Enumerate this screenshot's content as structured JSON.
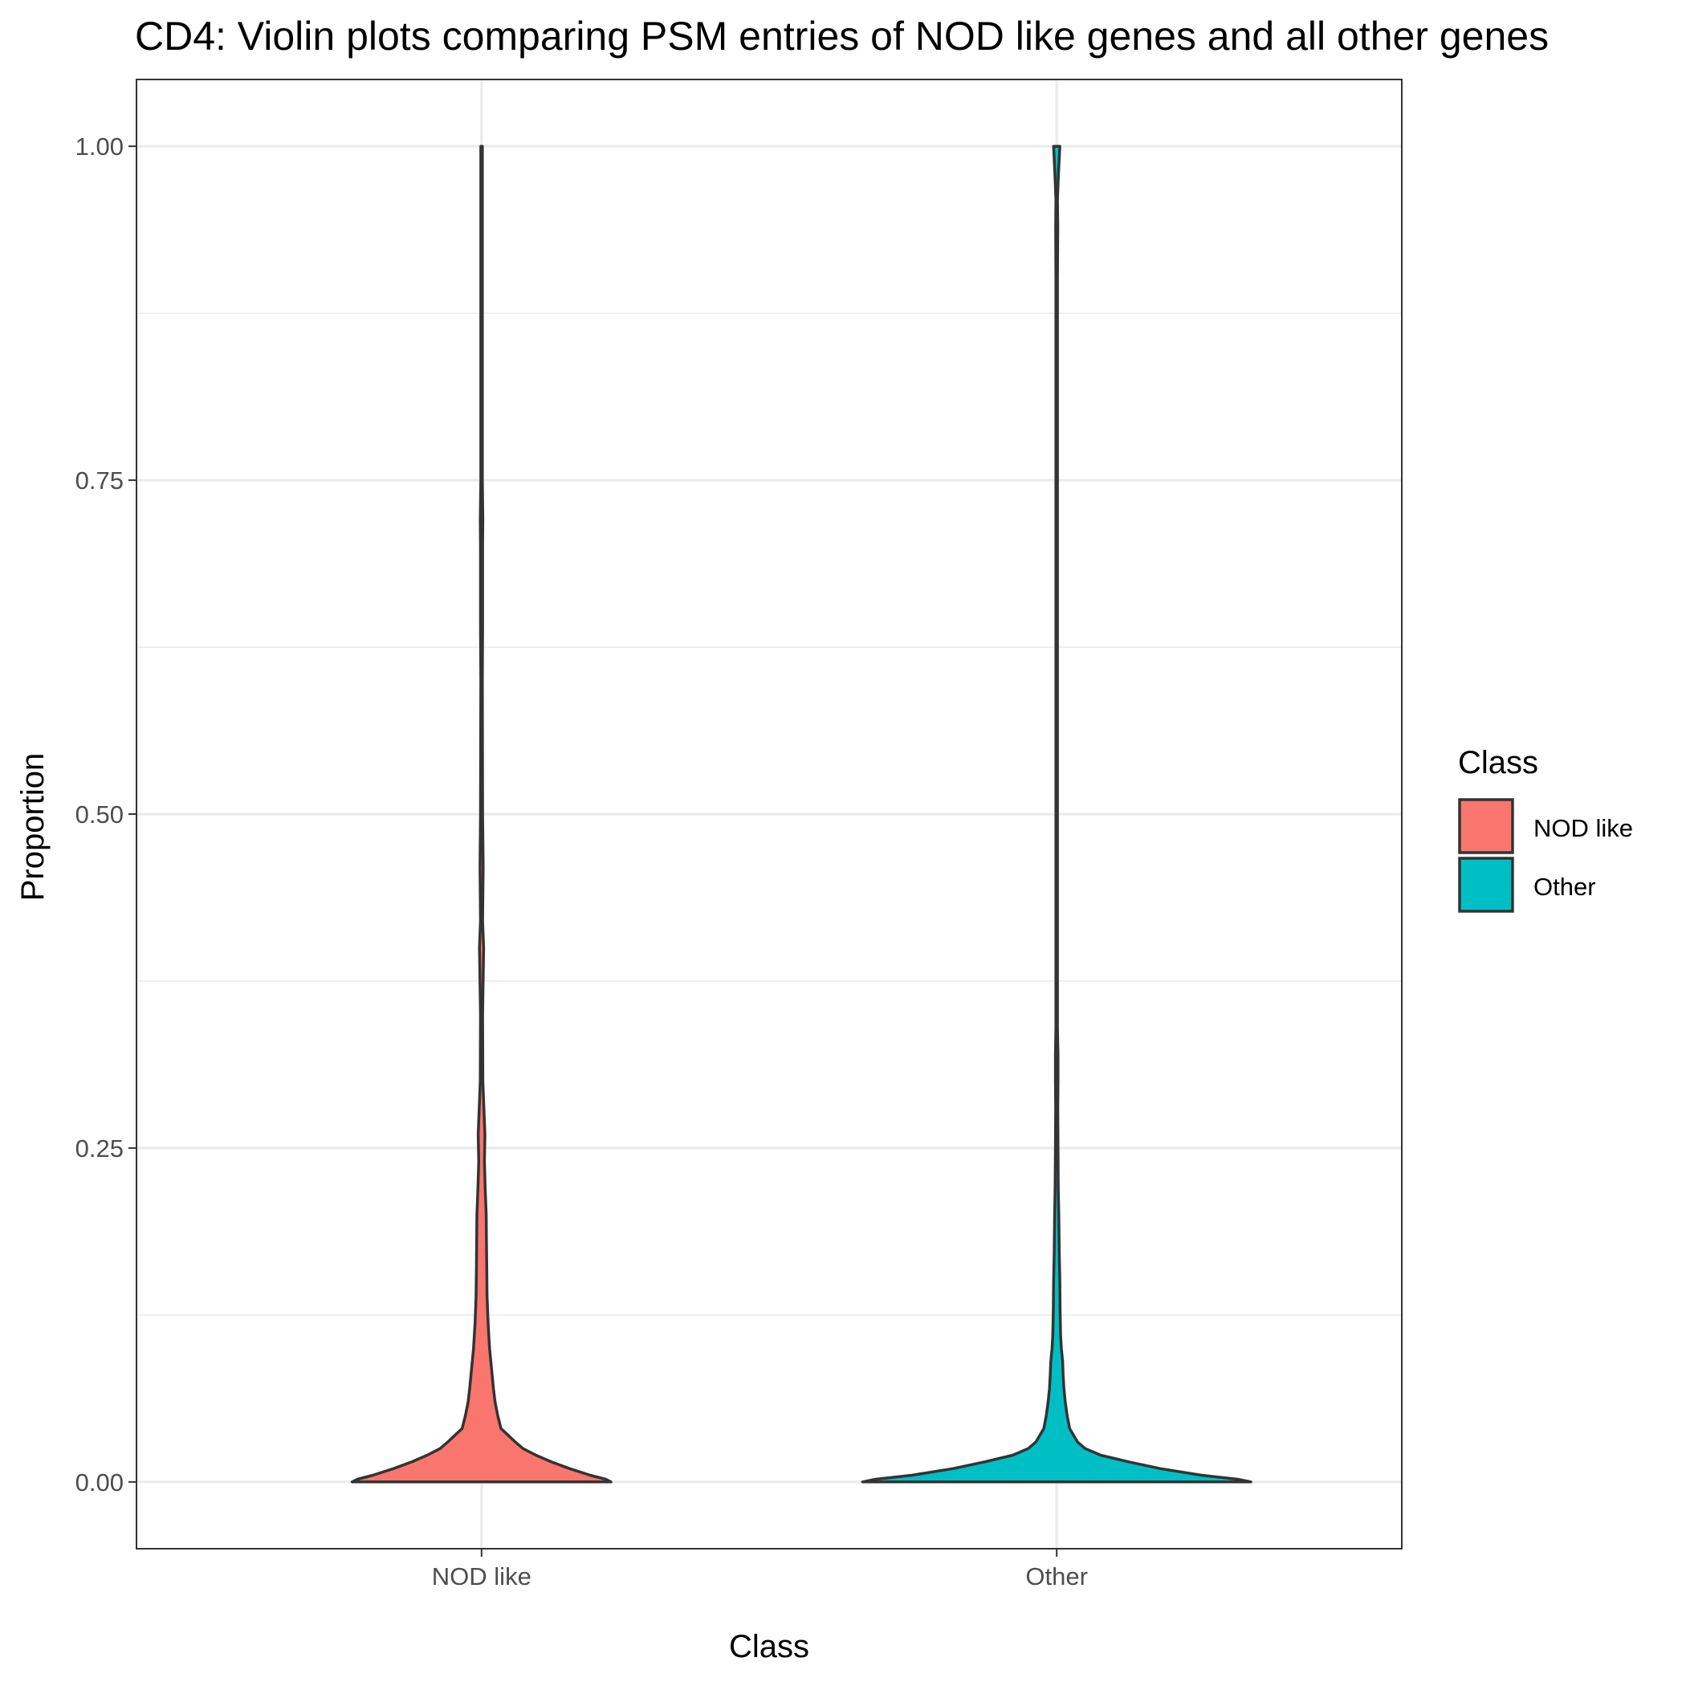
{
  "chart_data": {
    "type": "violin",
    "title": "CD4: Violin plots comparing PSM entries of NOD like genes and all other genes",
    "xlabel": "Class",
    "ylabel": "Proportion",
    "categories": [
      "NOD like",
      "Other"
    ],
    "ylim": [
      -0.05,
      1.05
    ],
    "y_ticks": [
      0.0,
      0.25,
      0.5,
      0.75,
      1.0
    ],
    "y_tick_labels": [
      "0.00",
      "0.25",
      "0.50",
      "0.75",
      "1.00"
    ],
    "grid": true,
    "legend": {
      "title": "Class",
      "position": "right",
      "entries": [
        {
          "label": "NOD like",
          "color": "#F8766D"
        },
        {
          "label": "Other",
          "color": "#00BFC4"
        }
      ]
    },
    "series": [
      {
        "name": "NOD like",
        "color": "#F8766D",
        "half_width_profile": [
          [
            0.0,
            0.5
          ],
          [
            0.002,
            0.48
          ],
          [
            0.005,
            0.42
          ],
          [
            0.01,
            0.34
          ],
          [
            0.015,
            0.27
          ],
          [
            0.02,
            0.21
          ],
          [
            0.025,
            0.16
          ],
          [
            0.03,
            0.13
          ],
          [
            0.04,
            0.075
          ],
          [
            0.05,
            0.062
          ],
          [
            0.06,
            0.052
          ],
          [
            0.07,
            0.046
          ],
          [
            0.08,
            0.041
          ],
          [
            0.09,
            0.036
          ],
          [
            0.1,
            0.031
          ],
          [
            0.11,
            0.028
          ],
          [
            0.12,
            0.025
          ],
          [
            0.14,
            0.021
          ],
          [
            0.16,
            0.02
          ],
          [
            0.18,
            0.019
          ],
          [
            0.2,
            0.018
          ],
          [
            0.22,
            0.014
          ],
          [
            0.24,
            0.011
          ],
          [
            0.26,
            0.013
          ],
          [
            0.28,
            0.009
          ],
          [
            0.3,
            0.005
          ],
          [
            0.35,
            0.004
          ],
          [
            0.4,
            0.008
          ],
          [
            0.42,
            0.004
          ],
          [
            0.46,
            0.006
          ],
          [
            0.5,
            0.004
          ],
          [
            0.6,
            0.003
          ],
          [
            0.64,
            0.004
          ],
          [
            0.7,
            0.004
          ],
          [
            0.72,
            0.005
          ],
          [
            0.75,
            0.003
          ],
          [
            0.9,
            0.003
          ],
          [
            0.95,
            0.003
          ],
          [
            1.0,
            0.003
          ]
        ]
      },
      {
        "name": "Other",
        "color": "#00BFC4",
        "half_width_profile": [
          [
            0.0,
            0.75
          ],
          [
            0.002,
            0.7
          ],
          [
            0.005,
            0.56
          ],
          [
            0.01,
            0.4
          ],
          [
            0.015,
            0.28
          ],
          [
            0.02,
            0.17
          ],
          [
            0.025,
            0.11
          ],
          [
            0.03,
            0.08
          ],
          [
            0.04,
            0.05
          ],
          [
            0.05,
            0.04
          ],
          [
            0.06,
            0.033
          ],
          [
            0.07,
            0.028
          ],
          [
            0.08,
            0.025
          ],
          [
            0.09,
            0.023
          ],
          [
            0.1,
            0.018
          ],
          [
            0.11,
            0.015
          ],
          [
            0.13,
            0.013
          ],
          [
            0.15,
            0.012
          ],
          [
            0.17,
            0.01
          ],
          [
            0.2,
            0.008
          ],
          [
            0.22,
            0.006
          ],
          [
            0.25,
            0.005
          ],
          [
            0.28,
            0.004
          ],
          [
            0.3,
            0.005
          ],
          [
            0.32,
            0.005
          ],
          [
            0.34,
            0.003
          ],
          [
            0.5,
            0.003
          ],
          [
            0.65,
            0.003
          ],
          [
            0.9,
            0.003
          ],
          [
            0.94,
            0.004
          ],
          [
            0.96,
            0.003
          ],
          [
            0.98,
            0.007
          ],
          [
            1.0,
            0.012
          ]
        ]
      }
    ]
  }
}
